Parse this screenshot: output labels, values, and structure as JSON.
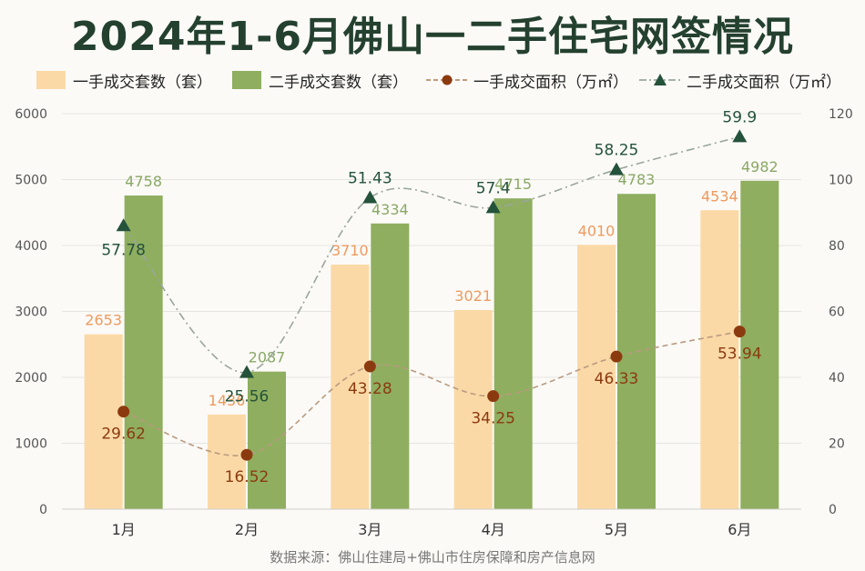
{
  "title": "2024年1-6月佛山一二手住宅网签情况",
  "source": "数据来源：佛山住建局+佛山市住房保障和房产信息网",
  "colors": {
    "bar1": "#fbd9a6",
    "bar2": "#8fae5f",
    "line1": "#8b3a0f",
    "line2": "#24523a",
    "label1": "#ef9a5e",
    "label2": "#8aa866",
    "title": "#24402f"
  },
  "chart_data": {
    "type": "bar",
    "title": "2024年1-6月佛山一二手住宅网签情况",
    "categories": [
      "1月",
      "2月",
      "3月",
      "4月",
      "5月",
      "6月"
    ],
    "series": [
      {
        "name": "一手成交套数（套）",
        "type": "bar",
        "axis": "left",
        "values": [
          2653,
          1436,
          3710,
          3021,
          4010,
          4534
        ]
      },
      {
        "name": "二手成交套数（套）",
        "type": "bar",
        "axis": "left",
        "values": [
          4758,
          2087,
          4334,
          4715,
          4783,
          4982
        ]
      },
      {
        "name": "一手成交面积（万㎡）",
        "type": "line",
        "axis": "right",
        "values": [
          29.62,
          16.52,
          43.28,
          34.25,
          46.33,
          53.94
        ]
      },
      {
        "name": "二手成交面积（万㎡）",
        "type": "line",
        "axis": "right",
        "values": [
          57.78,
          25.56,
          51.43,
          57.4,
          58.25,
          59.9
        ]
      }
    ],
    "series_plot_positions_note_removed": true,
    "y_left": {
      "min": 0,
      "max": 6000,
      "ticks": [
        0,
        1000,
        2000,
        3000,
        4000,
        5000,
        6000
      ]
    },
    "y_right": {
      "min": 0,
      "max": 120,
      "ticks": [
        0,
        20,
        40,
        60,
        80,
        100,
        120
      ]
    },
    "line_marker_levels_right_axis": {
      "一手成交面积（万㎡）": [
        29.6,
        16.5,
        43.3,
        34.3,
        46.3,
        53.9
      ],
      "二手成交面积（万㎡）": [
        86,
        41.5,
        94.5,
        91.5,
        103,
        113
      ]
    },
    "grid": true,
    "legend_position": "top"
  }
}
